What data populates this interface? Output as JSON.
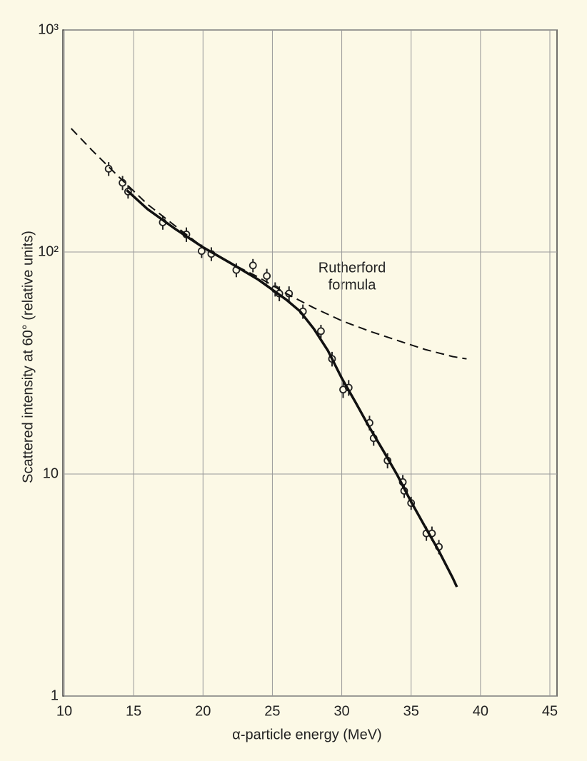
{
  "chart_data": {
    "type": "scatter",
    "xlabel": "α-particle energy (MeV)",
    "ylabel": "Scattered intensity at 60° (relative units)",
    "annotation": [
      "Rutherford",
      "formula"
    ],
    "xlim": [
      10,
      45
    ],
    "xticks": [
      10,
      15,
      20,
      25,
      30,
      35,
      40,
      45
    ],
    "ylim": [
      1,
      1000
    ],
    "yticks": [
      1,
      10,
      {
        "value": 100,
        "label": "10²"
      },
      {
        "value": 1000,
        "label": "10³"
      }
    ],
    "ylog": true,
    "grid": true,
    "series": [
      {
        "style": "markers",
        "color": "#222222",
        "x": [
          13.2,
          14.2,
          14.6,
          17.1,
          18.8,
          19.9,
          20.6,
          22.4,
          23.6,
          24.6,
          25.2,
          25.5,
          26.2,
          27.2,
          28.5,
          29.3,
          30.1,
          30.5,
          32.0,
          32.3,
          33.3,
          34.4,
          34.5,
          35.0,
          36.1,
          36.5,
          37.0
        ],
        "values": [
          237,
          205,
          187,
          136,
          120,
          101,
          98,
          83,
          87,
          78,
          68,
          65,
          65,
          54,
          44,
          33,
          24,
          24.5,
          17,
          14.5,
          11.5,
          9.2,
          8.4,
          7.4,
          5.4,
          5.4,
          4.7
        ],
        "errors": [
          17,
          15,
          13,
          10,
          9,
          7,
          7,
          6,
          6,
          6,
          5,
          5,
          5,
          4,
          3,
          2.5,
          2,
          2,
          1.3,
          1.1,
          0.9,
          0.7,
          0.6,
          0.5,
          0.4,
          0.4,
          0.35
        ]
      },
      {
        "style": "solid",
        "color": "#111111",
        "x": [
          14.5,
          16,
          18,
          20,
          22,
          24,
          26,
          27,
          28,
          29,
          30,
          31,
          32,
          33,
          34,
          35,
          36,
          37,
          38,
          38.3
        ],
        "values": [
          190,
          156,
          127,
          105,
          89,
          75,
          61,
          54,
          45,
          36,
          27,
          21,
          16.2,
          12.7,
          9.9,
          7.5,
          5.8,
          4.5,
          3.4,
          3.1
        ]
      },
      {
        "style": "dashed",
        "color": "#111111",
        "x": [
          10.5,
          12,
          14,
          16,
          18,
          20,
          22,
          24,
          26,
          28,
          30,
          32,
          34,
          36,
          38,
          39
        ],
        "values": [
          360,
          287,
          216,
          164,
          131,
          105,
          89,
          77,
          65,
          56,
          49,
          44,
          40,
          36.4,
          33.8,
          33
        ]
      }
    ]
  }
}
